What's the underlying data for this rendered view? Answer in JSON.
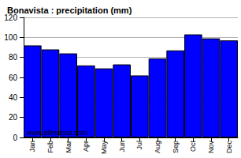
{
  "chart_data": {
    "type": "bar",
    "title": "Bonavista : precipitation (mm)",
    "categories": [
      "Jan",
      "Feb",
      "Mar",
      "Apr",
      "May",
      "Jun",
      "Jul",
      "Aug",
      "Sep",
      "Oct",
      "Nov",
      "Dec"
    ],
    "values": [
      92,
      88,
      84,
      72,
      69,
      73,
      62,
      79,
      87,
      103,
      99,
      97
    ],
    "color": "#0000ff",
    "ylim": [
      0,
      120
    ],
    "yticks": [
      0,
      20,
      40,
      60,
      80,
      100,
      120
    ],
    "grid": true,
    "annotations": [
      "www.allmetsat.com"
    ]
  }
}
